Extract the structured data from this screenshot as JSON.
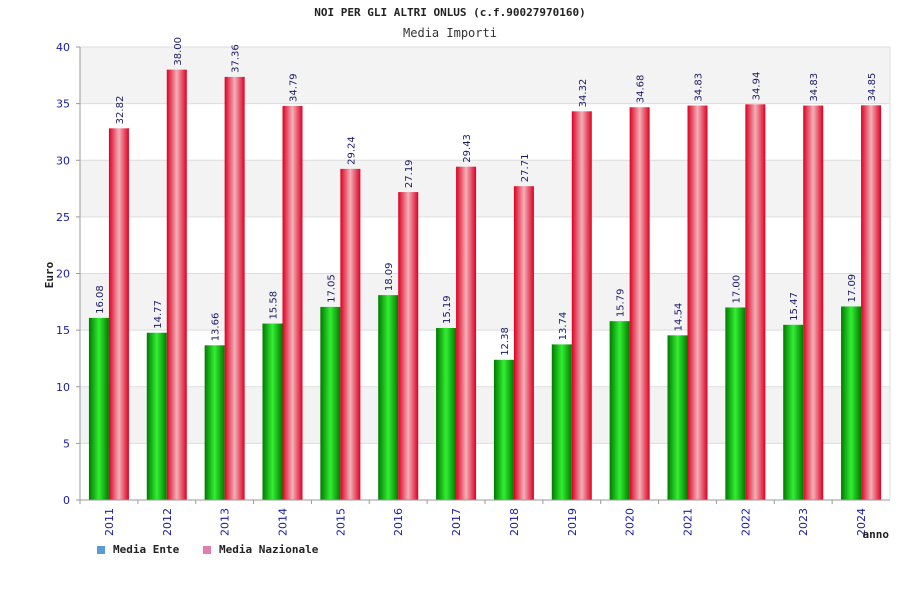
{
  "header": {
    "title": "NOI PER GLI ALTRI ONLUS (c.f.90027970160)",
    "subtitle": "Media Importi"
  },
  "legend": {
    "items": [
      {
        "label": "Media Ente",
        "color": "#5b9bd5"
      },
      {
        "label": "Media Nazionale",
        "color": "#e07fae"
      }
    ]
  },
  "colors": {
    "ente_dark": "#007a00",
    "ente_light": "#33ee33",
    "naz_dark": "#dd0022",
    "naz_light": "#f2b0b8"
  },
  "chart_data": {
    "type": "bar",
    "title": "NOI PER GLI ALTRI ONLUS (c.f.90027970160)",
    "subtitle": "Media Importi",
    "xlabel": "anno",
    "ylabel": "Euro",
    "ylim": [
      0,
      40
    ],
    "yticks": [
      0,
      5,
      10,
      15,
      20,
      25,
      30,
      35,
      40
    ],
    "grid": true,
    "legend_position": "bottom-left",
    "categories": [
      "2011",
      "2012",
      "2013",
      "2014",
      "2015",
      "2016",
      "2017",
      "2018",
      "2019",
      "2020",
      "2021",
      "2022",
      "2023",
      "2024"
    ],
    "series": [
      {
        "name": "Media Ente",
        "values": [
          16.08,
          14.77,
          13.66,
          15.58,
          17.05,
          18.09,
          15.19,
          12.38,
          13.74,
          15.79,
          14.54,
          17.0,
          15.47,
          17.09
        ],
        "labels": [
          "16.08",
          "14.77",
          "13.66",
          "15.58",
          "17.05",
          "18.09",
          "15.19",
          "12.38",
          "13.74",
          "15.79",
          "14.54",
          "17.00",
          "15.47",
          "17.09"
        ]
      },
      {
        "name": "Media Nazionale",
        "values": [
          32.82,
          38.0,
          37.36,
          34.79,
          29.24,
          27.19,
          29.43,
          27.71,
          34.32,
          34.68,
          34.83,
          34.94,
          34.83,
          34.85
        ],
        "labels": [
          "32.82",
          "38.00",
          "37.36",
          "34.79",
          "29.24",
          "27.19",
          "29.43",
          "27.71",
          "34.32",
          "34.68",
          "34.83",
          "34.94",
          "34.83",
          "34.85"
        ]
      }
    ]
  }
}
